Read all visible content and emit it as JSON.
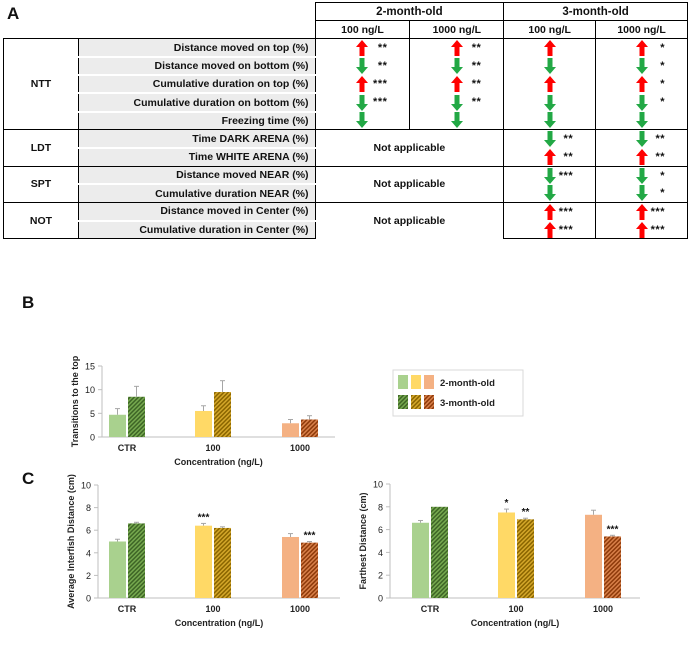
{
  "panel_labels": {
    "a": "A",
    "b": "B",
    "c": "C"
  },
  "table": {
    "age_headers": [
      "2-month-old",
      "3-month-old"
    ],
    "conc_headers": [
      "100 ng/L",
      "1000 ng/L",
      "100 ng/L",
      "1000 ng/L"
    ],
    "not_applicable": "Not applicable",
    "colors": {
      "up": "#ff0000",
      "down": "#22a845"
    },
    "groups": [
      {
        "name": "NTT",
        "rows": [
          {
            "label": "Distance moved on top (%)",
            "cells": [
              {
                "dir": "up",
                "sig": "**"
              },
              {
                "dir": "up",
                "sig": "**"
              },
              {
                "dir": "up",
                "sig": ""
              },
              {
                "dir": "up",
                "sig": "*"
              }
            ]
          },
          {
            "label": "Distance moved on bottom (%)",
            "cells": [
              {
                "dir": "down",
                "sig": "**"
              },
              {
                "dir": "down",
                "sig": "**"
              },
              {
                "dir": "down",
                "sig": ""
              },
              {
                "dir": "down",
                "sig": "*"
              }
            ]
          },
          {
            "label": "Cumulative duration on top (%)",
            "cells": [
              {
                "dir": "up",
                "sig": "***"
              },
              {
                "dir": "up",
                "sig": "**"
              },
              {
                "dir": "up",
                "sig": ""
              },
              {
                "dir": "up",
                "sig": "*"
              }
            ]
          },
          {
            "label": "Cumulative duration on bottom (%)",
            "cells": [
              {
                "dir": "down",
                "sig": "***"
              },
              {
                "dir": "down",
                "sig": "**"
              },
              {
                "dir": "down",
                "sig": ""
              },
              {
                "dir": "down",
                "sig": "*"
              }
            ]
          },
          {
            "label": "Freezing time (%)",
            "cells": [
              {
                "dir": "down",
                "sig": ""
              },
              {
                "dir": "down",
                "sig": ""
              },
              {
                "dir": "down",
                "sig": ""
              },
              {
                "dir": "down",
                "sig": ""
              }
            ]
          }
        ]
      },
      {
        "name": "LDT",
        "rows": [
          {
            "label": "Time DARK ARENA (%)",
            "cells": [
              null,
              null,
              {
                "dir": "down",
                "sig": "**"
              },
              {
                "dir": "down",
                "sig": "**"
              }
            ]
          },
          {
            "label": "Time WHITE ARENA (%)",
            "cells": [
              null,
              null,
              {
                "dir": "up",
                "sig": "**"
              },
              {
                "dir": "up",
                "sig": "**"
              }
            ]
          }
        ]
      },
      {
        "name": "SPT",
        "rows": [
          {
            "label": "Distance moved NEAR (%)",
            "cells": [
              null,
              null,
              {
                "dir": "down",
                "sig": "***"
              },
              {
                "dir": "down",
                "sig": "*"
              }
            ]
          },
          {
            "label": "Cumulative duration NEAR (%)",
            "cells": [
              null,
              null,
              {
                "dir": "down",
                "sig": ""
              },
              {
                "dir": "down",
                "sig": "*"
              }
            ]
          }
        ]
      },
      {
        "name": "NOT",
        "rows": [
          {
            "label": "Distance moved in Center (%)",
            "cells": [
              null,
              null,
              {
                "dir": "up",
                "sig": "***"
              },
              {
                "dir": "up",
                "sig": "***"
              }
            ]
          },
          {
            "label": "Cumulative duration in Center (%)",
            "cells": [
              null,
              null,
              {
                "dir": "up",
                "sig": "***"
              },
              {
                "dir": "up",
                "sig": "***"
              }
            ]
          }
        ]
      }
    ]
  },
  "legend": {
    "entries": [
      "2-month-old",
      "3-month-old"
    ],
    "colors_2m": [
      "#a9d18e",
      "#ffd966",
      "#f4b183"
    ],
    "colors_3m": [
      "#548235",
      "#bf9000",
      "#c55a11"
    ]
  },
  "chart_data": [
    {
      "type": "bar",
      "ylabel": "Transitions to the top",
      "xlabel": "Concentration (ng/L)",
      "categories": [
        "CTR",
        "100",
        "1000"
      ],
      "ylim": [
        0,
        15
      ],
      "yticks": [
        "0",
        "5",
        "10",
        "15"
      ],
      "series": [
        {
          "name": "2-month-old",
          "values": [
            4.7,
            5.5,
            2.9
          ],
          "errors": [
            1.3,
            1.1,
            0.8
          ],
          "sig": [
            "",
            "",
            ""
          ]
        },
        {
          "name": "3-month-old",
          "values": [
            8.5,
            9.5,
            3.7
          ],
          "errors": [
            2.2,
            2.4,
            0.8
          ],
          "sig": [
            "",
            "",
            ""
          ]
        }
      ]
    },
    {
      "type": "bar",
      "ylabel": "Average Interfish Distance (cm)",
      "xlabel": "Concentration (ng/L)",
      "categories": [
        "CTR",
        "100",
        "1000"
      ],
      "ylim": [
        0,
        10
      ],
      "yticks": [
        "0",
        "2",
        "4",
        "6",
        "8",
        "10"
      ],
      "series": [
        {
          "name": "2-month-old",
          "values": [
            5.0,
            6.4,
            5.4
          ],
          "errors": [
            0.2,
            0.2,
            0.3
          ],
          "sig": [
            "",
            "***",
            ""
          ]
        },
        {
          "name": "3-month-old",
          "values": [
            6.6,
            6.2,
            4.9
          ],
          "errors": [
            0.1,
            0.1,
            0.1
          ],
          "sig": [
            "",
            "",
            "***"
          ]
        }
      ]
    },
    {
      "type": "bar",
      "ylabel": "Farthest Distance (cm)",
      "xlabel": "Concentration (ng/L)",
      "categories": [
        "CTR",
        "100",
        "1000"
      ],
      "ylim": [
        0,
        10
      ],
      "yticks": [
        "0",
        "2",
        "4",
        "6",
        "8",
        "10"
      ],
      "series": [
        {
          "name": "2-month-old",
          "values": [
            6.6,
            7.5,
            7.3
          ],
          "errors": [
            0.2,
            0.3,
            0.4
          ],
          "sig": [
            "",
            "*",
            ""
          ]
        },
        {
          "name": "3-month-old",
          "values": [
            8.0,
            6.9,
            5.4
          ],
          "errors": [
            0.0,
            0.1,
            0.1
          ],
          "sig": [
            "",
            "**",
            "***"
          ]
        }
      ]
    }
  ]
}
